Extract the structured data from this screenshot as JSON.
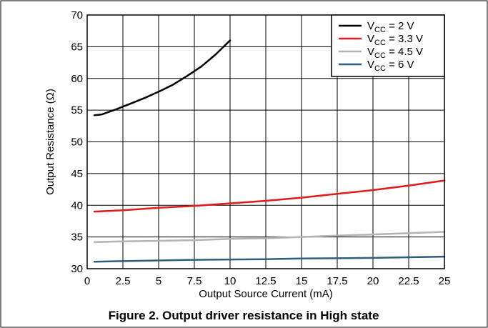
{
  "chart_data": {
    "type": "line",
    "xlabel": "Output Source Current (mA)",
    "ylabel": "Output Resistance (Ω)",
    "xlim": [
      0,
      25
    ],
    "ylim": [
      30,
      70
    ],
    "x_ticks": [
      "0",
      "2.5",
      "5",
      "7.5",
      "10",
      "12.5",
      "15",
      "17.5",
      "20",
      "22.5",
      "25"
    ],
    "y_ticks": [
      "30",
      "35",
      "40",
      "45",
      "50",
      "55",
      "60",
      "65",
      "70"
    ],
    "grid": true,
    "legend_position": "top-right",
    "series": [
      {
        "name": "V_CC = 2 V",
        "legend": {
          "base": "V",
          "sub": "CC",
          "rest": " = 2 V"
        },
        "color": "#000000",
        "x": [
          0.5,
          1,
          2,
          3,
          4,
          5,
          6,
          7,
          8,
          9,
          10
        ],
        "y": [
          54.2,
          54.3,
          55.1,
          56.0,
          56.9,
          57.9,
          59.0,
          60.4,
          61.9,
          63.8,
          66.0
        ]
      },
      {
        "name": "V_CC = 3.3 V",
        "legend": {
          "base": "V",
          "sub": "CC",
          "rest": " = 3.3 V"
        },
        "color": "#e31a1c",
        "x": [
          0.5,
          2.5,
          5,
          7.5,
          10,
          12.5,
          15,
          17.5,
          20,
          22.5,
          25
        ],
        "y": [
          39.0,
          39.2,
          39.6,
          39.9,
          40.3,
          40.7,
          41.2,
          41.8,
          42.4,
          43.1,
          43.9
        ]
      },
      {
        "name": "V_CC = 4.5 V",
        "legend": {
          "base": "V",
          "sub": "CC",
          "rest": " = 4.5 V"
        },
        "color": "#b3b3b3",
        "x": [
          0.5,
          2.5,
          5,
          7.5,
          10,
          12.5,
          15,
          17.5,
          20,
          22.5,
          25
        ],
        "y": [
          34.2,
          34.3,
          34.4,
          34.5,
          34.7,
          34.8,
          35.0,
          35.2,
          35.4,
          35.6,
          35.8
        ]
      },
      {
        "name": "V_CC = 6 V",
        "legend": {
          "base": "V",
          "sub": "CC",
          "rest": " = 6 V"
        },
        "color": "#2e5e7e",
        "x": [
          0.5,
          2.5,
          5,
          7.5,
          10,
          12.5,
          15,
          17.5,
          20,
          22.5,
          25
        ],
        "y": [
          31.1,
          31.2,
          31.3,
          31.4,
          31.45,
          31.5,
          31.6,
          31.65,
          31.7,
          31.8,
          31.9
        ]
      }
    ]
  },
  "caption": "Figure 2. Output driver resistance in High state"
}
